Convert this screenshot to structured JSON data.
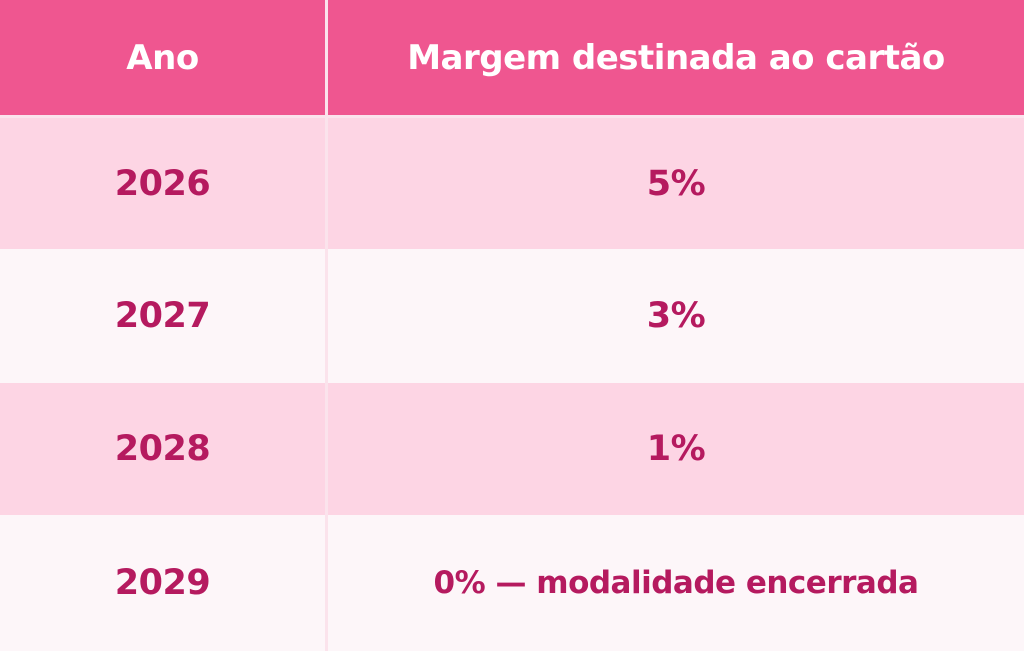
{
  "table": {
    "headers": [
      "Ano",
      "Margem destinada ao cartão"
    ],
    "rows": [
      [
        "2026",
        "5%"
      ],
      [
        "2027",
        "3%"
      ],
      [
        "2028",
        "1%"
      ],
      [
        "2029",
        "0% — modalidade encerrada"
      ]
    ]
  },
  "colors": {
    "header_bg": "#ef5690",
    "header_text": "#ffffff",
    "row_pink_bg": "#fdd5e4",
    "row_light_bg": "#fdf6f9",
    "row_text": "#b51a5f"
  }
}
